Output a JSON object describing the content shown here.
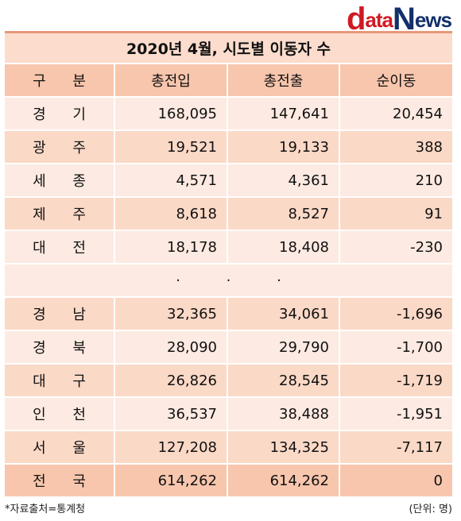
{
  "logo": {
    "d": "d",
    "ata": "ata",
    "n": "N",
    "ews": "ews"
  },
  "title": "2020년 4월, 시도별 이동자 수",
  "headers": [
    "구 분",
    "총전입",
    "총전출",
    "순이동"
  ],
  "rows_top": [
    {
      "region": "경 기",
      "in": "168,095",
      "out": "147,641",
      "net": "20,454"
    },
    {
      "region": "광 주",
      "in": "19,521",
      "out": "19,133",
      "net": "388"
    },
    {
      "region": "세 종",
      "in": "4,571",
      "out": "4,361",
      "net": "210"
    },
    {
      "region": "제 주",
      "in": "8,618",
      "out": "8,527",
      "net": "91"
    },
    {
      "region": "대 전",
      "in": "18,178",
      "out": "18,408",
      "net": "-230"
    }
  ],
  "ellipsis": "· · ·",
  "rows_bottom": [
    {
      "region": "경 남",
      "in": "32,365",
      "out": "34,061",
      "net": "-1,696"
    },
    {
      "region": "경 북",
      "in": "28,090",
      "out": "29,790",
      "net": "-1,700"
    },
    {
      "region": "대 구",
      "in": "26,826",
      "out": "28,545",
      "net": "-1,719"
    },
    {
      "region": "인 천",
      "in": "36,537",
      "out": "38,488",
      "net": "-1,951"
    },
    {
      "region": "서 울",
      "in": "127,208",
      "out": "134,325",
      "net": "-7,117"
    }
  ],
  "total": {
    "region": "전 국",
    "in": "614,262",
    "out": "614,262",
    "net": "0"
  },
  "footer": {
    "source": "*자료출처=통계청",
    "unit": "(단위: 명)"
  },
  "colors": {
    "header": "#f8c6ad",
    "row_light": "#fdeae2",
    "row_dark": "#fbd9c7",
    "brand_red": "#d01a23",
    "brand_navy": "#12306a"
  }
}
